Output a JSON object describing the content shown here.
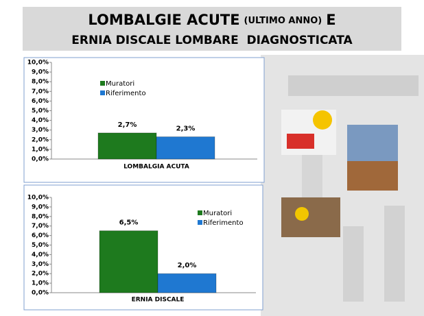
{
  "header": {
    "title_parts": [
      "LOMBALGIE ACUTE",
      "(ULTIMO ANNO)",
      "E",
      "ERNIA DISCALE LOMBARE  DIAGNOSTICATA"
    ]
  },
  "chart_data": [
    {
      "type": "bar",
      "categories": [
        "LOMBALGIA ACUTA"
      ],
      "series": [
        {
          "name": "Muratori",
          "color": "#1e7a1e",
          "values": [
            2.7
          ],
          "value_labels": [
            "2,7%"
          ]
        },
        {
          "name": "Riferimento",
          "color": "#1f78d1",
          "values": [
            2.3
          ],
          "value_labels": [
            "2,3%"
          ]
        }
      ],
      "ylim": [
        0,
        10
      ],
      "yticks": [
        {
          "value": 0,
          "label": "0,0%"
        },
        {
          "value": 1,
          "label": "1,0%"
        },
        {
          "value": 2,
          "label": "2,0%"
        },
        {
          "value": 3,
          "label": "3,0%"
        },
        {
          "value": 4,
          "label": "4,0%"
        },
        {
          "value": 5,
          "label": "5,0%"
        },
        {
          "value": 6,
          "label": "6,0%"
        },
        {
          "value": 7,
          "label": "7,0%"
        },
        {
          "value": 8,
          "label": "8,0%"
        },
        {
          "value": 9,
          "label": "9,0%"
        },
        {
          "value": 10,
          "label": "10,0%"
        }
      ],
      "grid": false
    },
    {
      "type": "bar",
      "categories": [
        "ERNIA DISCALE"
      ],
      "series": [
        {
          "name": "Muratori",
          "color": "#1e7a1e",
          "values": [
            6.5
          ],
          "value_labels": [
            "6,5%"
          ]
        },
        {
          "name": "Riferimento",
          "color": "#1f78d1",
          "values": [
            2.0
          ],
          "value_labels": [
            "2,0%"
          ]
        }
      ],
      "ylim": [
        0,
        10
      ],
      "yticks": [
        {
          "value": 0,
          "label": "0,0%"
        },
        {
          "value": 1,
          "label": "1,0%"
        },
        {
          "value": 2,
          "label": "2,0%"
        },
        {
          "value": 3,
          "label": "3,0%"
        },
        {
          "value": 4,
          "label": "4,0%"
        },
        {
          "value": 5,
          "label": "5,0%"
        },
        {
          "value": 6,
          "label": "6,0%"
        },
        {
          "value": 7,
          "label": "7,0%"
        },
        {
          "value": 8,
          "label": "8,0%"
        },
        {
          "value": 9,
          "label": "9,0%"
        },
        {
          "value": 10,
          "label": "10,0%"
        }
      ],
      "grid": false
    }
  ]
}
